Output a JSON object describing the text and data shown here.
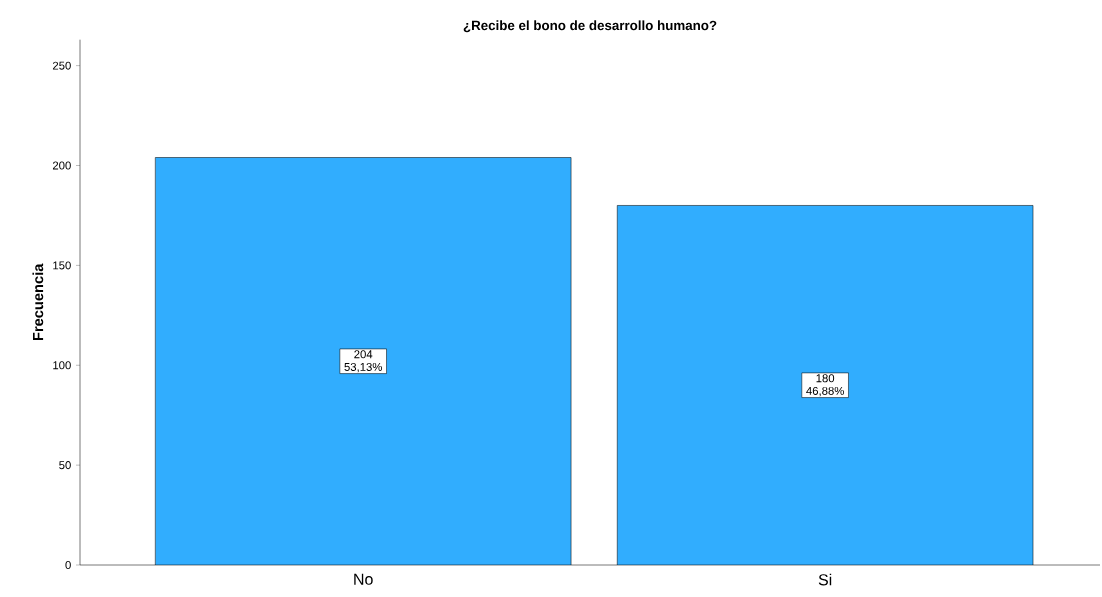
{
  "chart_data": {
    "type": "bar",
    "title": "¿Recibe el bono de desarrollo humano?",
    "ylabel": "Frecuencia",
    "categories": [
      "No",
      "Si"
    ],
    "values": [
      204,
      180
    ],
    "color": "#31adfe",
    "value_labels": [
      "204 53,13%",
      "180 46,88%"
    ],
    "ylim": [
      0,
      263
    ],
    "yticks": [
      0,
      50,
      100,
      150,
      200,
      250
    ],
    "grid": false
  }
}
